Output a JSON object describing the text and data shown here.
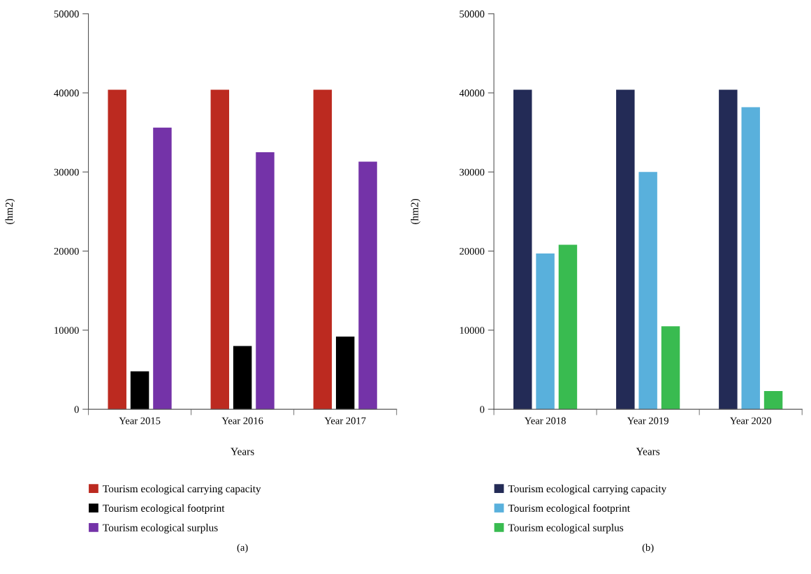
{
  "chart_data": [
    {
      "type": "bar",
      "categories": [
        "Year 2015",
        "Year 2016",
        "Year 2017"
      ],
      "xlabel": "Years",
      "ylabel": "(hm2)",
      "ylim": [
        0,
        50000
      ],
      "yticks": [
        0,
        10000,
        20000,
        30000,
        40000,
        50000
      ],
      "grid": false,
      "legend": "bottom",
      "annotations": [
        "(a)"
      ],
      "series": [
        {
          "name": "Tourism ecological carrying capacity",
          "color": "#bc2a20",
          "values": [
            40400,
            40400,
            40400
          ]
        },
        {
          "name": "Tourism ecological footprint",
          "color": "#000000",
          "values": [
            4800,
            8000,
            9200
          ]
        },
        {
          "name": "Tourism ecological surplus",
          "color": "#7433a8",
          "values": [
            35600,
            32500,
            31300
          ]
        }
      ]
    },
    {
      "type": "bar",
      "categories": [
        "Year 2018",
        "Year 2019",
        "Year 2020"
      ],
      "xlabel": "Years",
      "ylabel": "(hm2)",
      "ylim": [
        0,
        50000
      ],
      "yticks": [
        0,
        10000,
        20000,
        30000,
        40000,
        50000
      ],
      "grid": false,
      "legend": "bottom",
      "annotations": [
        "(b)"
      ],
      "series": [
        {
          "name": "Tourism ecological carrying capacity",
          "color": "#232b56",
          "values": [
            40400,
            40400,
            40400
          ]
        },
        {
          "name": "Tourism ecological footprint",
          "color": "#59b0dc",
          "values": [
            19700,
            30000,
            38200
          ]
        },
        {
          "name": "Tourism ecological surplus",
          "color": "#39bb50",
          "values": [
            20800,
            10500,
            2300
          ]
        }
      ]
    }
  ]
}
